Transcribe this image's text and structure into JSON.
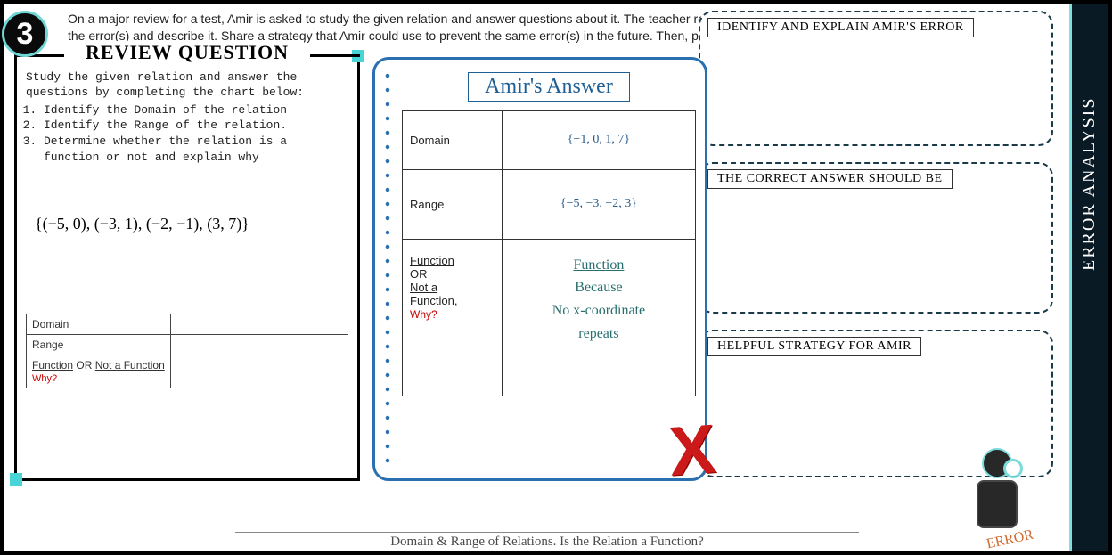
{
  "question_number": "3",
  "prompt_html": "On a major review for a test, Amir is asked to study the given relation and answer questions about it. The teacher returned the incorrect work back to Amir with an <span class='x-mark'>X</span> on it. Identify the error(s) and describe it. Share a strategy that Amir could use to prevent the same error(s) in the future. Then, provide the correct answer(s).",
  "review": {
    "title": "REVIEW QUESTION",
    "intro": "Study the given relation and answer the questions by completing the chart below:",
    "items": [
      "Identify the Domain of the relation",
      "Identify the Range of the relation.",
      "Determine whether the relation is a function or not and explain why"
    ],
    "relation": "{(−5, 0), (−3, 1), (−2, −1), (3, 7)}",
    "mini_table": {
      "r1": "Domain",
      "r2": "Range",
      "r3_html": "<u>Function</u> OR <u>Not a Function</u>",
      "r3_why": "Why?"
    }
  },
  "amir": {
    "title": "Amir's Answer",
    "rows": {
      "domain_label": "Domain",
      "domain_value": "{−1, 0, 1, 7}",
      "range_label": "Range",
      "range_value": "{−5, −3, −2, 3}",
      "func_label_html": "<u>Function</u><br>OR<br><u>Not a</u><br><u>Function</u>,",
      "func_why": "Why?",
      "func_answer_line1": "Function",
      "func_answer_line2": "Because",
      "func_answer_line3": "No x-coordinate",
      "func_answer_line4": "repeats"
    }
  },
  "right": {
    "box1": "IDENTIFY AND EXPLAIN AMIR'S ERROR",
    "box2": "THE CORRECT ANSWER SHOULD BE",
    "box3": "HELPFUL STRATEGY FOR AMIR"
  },
  "side_tab": "ERROR ANALYSIS",
  "footer": "Domain & Range of Relations. Is the Relation a Function?",
  "robot_tag": "ERROR",
  "colors": {
    "teal": "#49d5d5",
    "blue": "#2a6fb0",
    "red": "#cc1a1a"
  }
}
